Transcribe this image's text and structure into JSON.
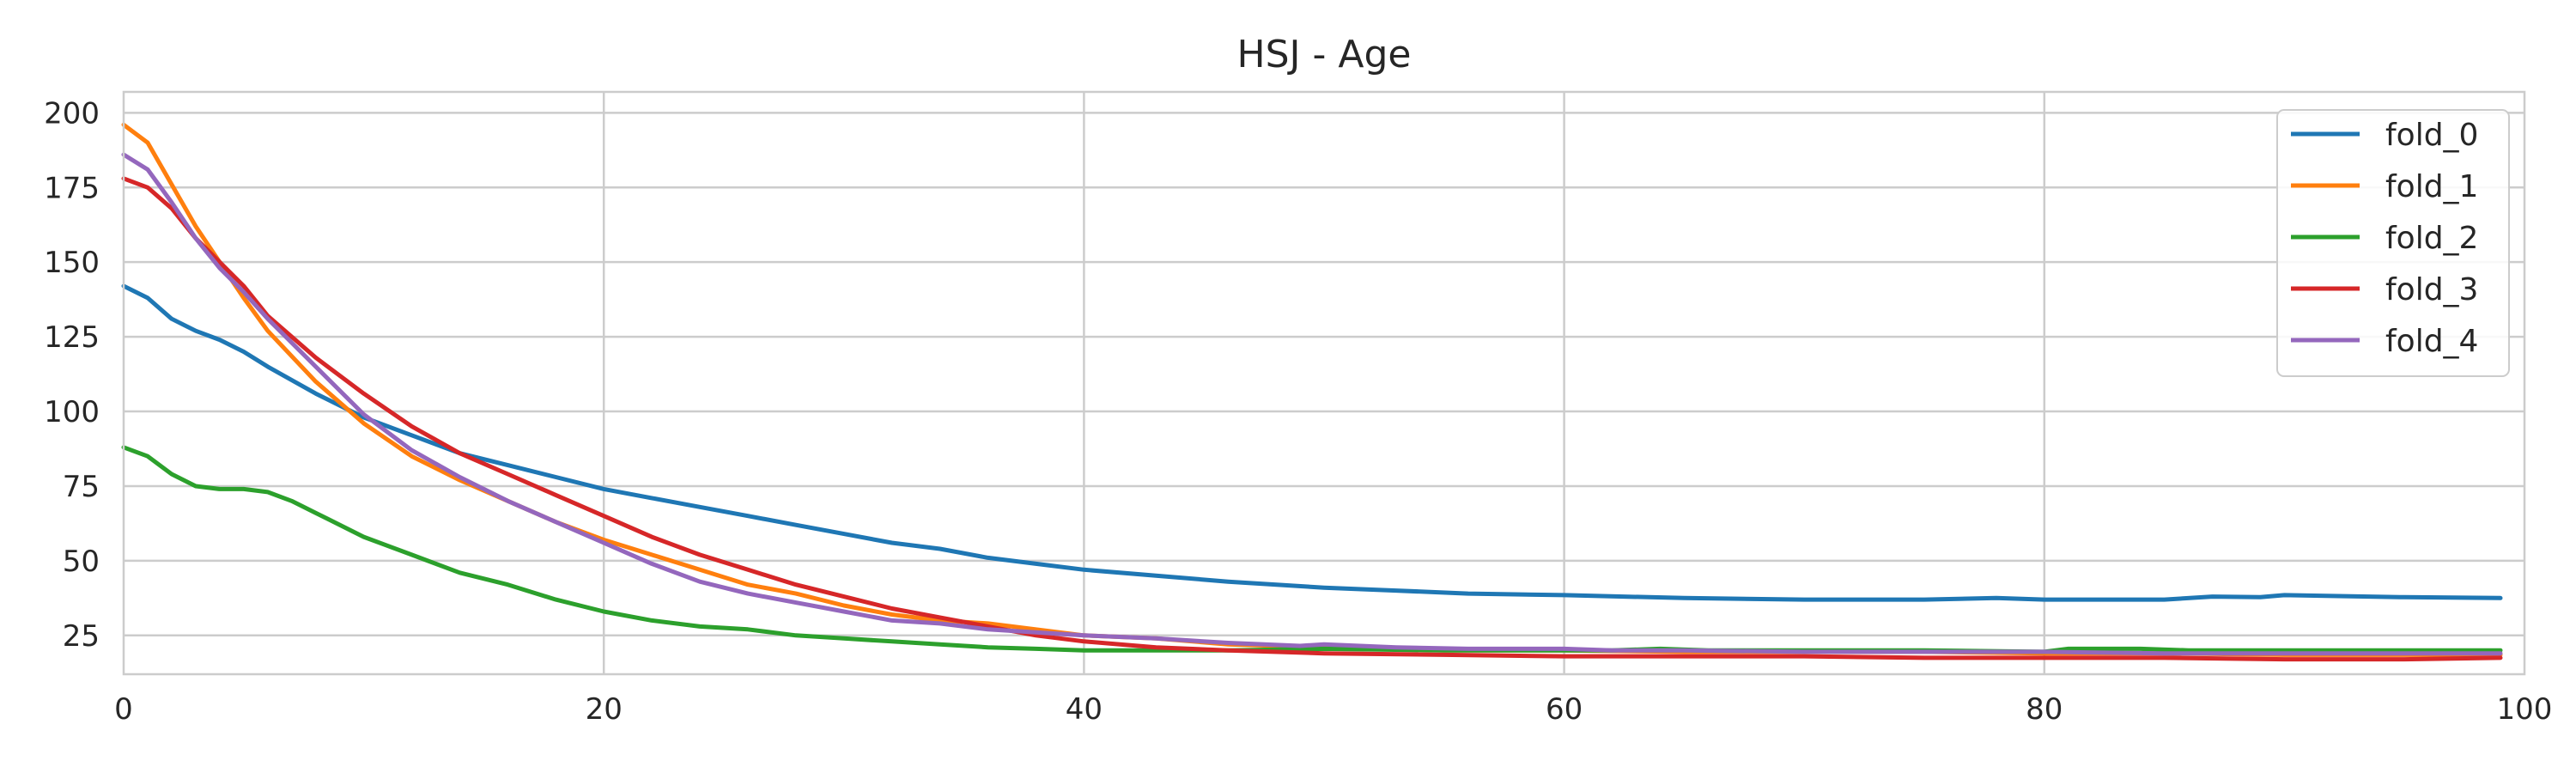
{
  "chart_data": {
    "type": "line",
    "title": "HSJ - Age",
    "xlabel": "",
    "ylabel": "",
    "xlim": [
      0,
      100
    ],
    "ylim": [
      12,
      207
    ],
    "x_ticks": [
      0,
      20,
      40,
      60,
      80,
      100
    ],
    "y_ticks": [
      25,
      50,
      75,
      100,
      125,
      150,
      175,
      200
    ],
    "grid": true,
    "legend_position": "top-right",
    "series": [
      {
        "name": "fold_0",
        "color": "#1f77b4",
        "x": [
          0,
          1,
          2,
          3,
          4,
          5,
          6,
          8,
          10,
          12,
          14,
          16,
          18,
          20,
          22,
          24,
          26,
          28,
          30,
          32,
          34,
          36,
          38,
          40,
          43,
          46,
          50,
          53,
          56,
          60,
          65,
          70,
          75,
          78,
          80,
          85,
          87,
          89,
          90,
          92,
          95,
          99
        ],
        "y": [
          142,
          138,
          131,
          127,
          124,
          120,
          115,
          106,
          98,
          92,
          86,
          82,
          78,
          74,
          71,
          68,
          65,
          62,
          59,
          56,
          54,
          51,
          49,
          47,
          45,
          43,
          41,
          40,
          39,
          38.5,
          37.5,
          37,
          37,
          37.5,
          37,
          37,
          38,
          37.8,
          38.5,
          38.2,
          37.8,
          37.5
        ]
      },
      {
        "name": "fold_1",
        "color": "#ff7f0e",
        "x": [
          0,
          1,
          2,
          3,
          4,
          5,
          6,
          8,
          10,
          12,
          14,
          16,
          18,
          20,
          22,
          24,
          26,
          28,
          30,
          32,
          34,
          36,
          38,
          40,
          43,
          46,
          50,
          55,
          60,
          65,
          70,
          75,
          80,
          85,
          90,
          95,
          99
        ],
        "y": [
          196,
          190,
          176,
          162,
          150,
          138,
          127,
          110,
          96,
          85,
          77,
          70,
          63,
          57,
          52,
          47,
          42,
          39,
          35,
          32,
          30,
          29,
          27,
          25,
          24,
          22,
          21,
          20,
          20,
          19.5,
          19.5,
          19.5,
          19,
          19,
          18.5,
          18.5,
          18.5
        ]
      },
      {
        "name": "fold_2",
        "color": "#2ca02c",
        "x": [
          0,
          1,
          2,
          3,
          4,
          5,
          6,
          7,
          8,
          10,
          12,
          14,
          16,
          18,
          20,
          22,
          24,
          26,
          28,
          30,
          32,
          34,
          36,
          38,
          40,
          43,
          46,
          50,
          55,
          60,
          62,
          64,
          66,
          70,
          75,
          80,
          81,
          84,
          86,
          90,
          95,
          99
        ],
        "y": [
          88,
          85,
          79,
          75,
          74,
          74,
          73,
          70,
          66,
          58,
          52,
          46,
          42,
          37,
          33,
          30,
          28,
          27,
          25,
          24,
          23,
          22,
          21,
          20.5,
          20,
          20,
          20,
          20.5,
          20,
          20,
          20,
          20.5,
          20,
          20,
          20,
          19.5,
          20.5,
          20.5,
          20,
          20,
          20,
          20
        ]
      },
      {
        "name": "fold_3",
        "color": "#d62728",
        "x": [
          0,
          1,
          2,
          3,
          4,
          5,
          6,
          8,
          10,
          12,
          14,
          16,
          18,
          20,
          22,
          24,
          26,
          28,
          30,
          32,
          34,
          36,
          38,
          40,
          43,
          46,
          50,
          55,
          60,
          65,
          70,
          75,
          80,
          85,
          90,
          95,
          99
        ],
        "y": [
          178,
          175,
          168,
          158,
          150,
          142,
          132,
          118,
          106,
          95,
          86,
          79,
          72,
          65,
          58,
          52,
          47,
          42,
          38,
          34,
          31,
          28,
          25,
          23,
          21,
          20,
          19,
          18.5,
          18,
          18,
          18,
          17.5,
          17.5,
          17.5,
          17,
          17,
          17.5
        ]
      },
      {
        "name": "fold_4",
        "color": "#9467bd",
        "x": [
          0,
          1,
          2,
          3,
          4,
          5,
          6,
          8,
          10,
          12,
          14,
          16,
          18,
          20,
          22,
          24,
          26,
          28,
          30,
          32,
          34,
          36,
          38,
          40,
          43,
          46,
          49,
          50,
          53,
          56,
          60,
          62,
          65,
          70,
          75,
          80,
          85,
          90,
          95,
          99
        ],
        "y": [
          186,
          181,
          170,
          158,
          148,
          140,
          131,
          115,
          99,
          87,
          78,
          70,
          63,
          56,
          49,
          43,
          39,
          36,
          33,
          30,
          29,
          27,
          26,
          25,
          24,
          22.5,
          21.5,
          22,
          21,
          20.5,
          20.5,
          20,
          20,
          19.5,
          19.5,
          19.5,
          19,
          19,
          19,
          19
        ]
      }
    ]
  }
}
